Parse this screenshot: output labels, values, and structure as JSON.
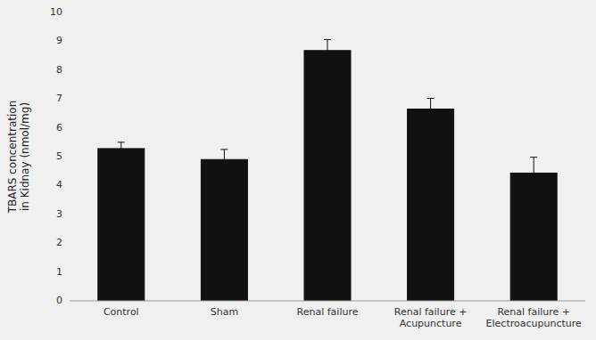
{
  "chart_data": {
    "type": "bar",
    "categories": [
      "Control",
      "Sham",
      "Renal failure",
      "Renal failure +\nAcupuncture",
      "Renal failure +\nElectroacupuncture"
    ],
    "values": [
      5.28,
      4.9,
      8.68,
      6.65,
      4.43
    ],
    "errors": [
      0.22,
      0.35,
      0.38,
      0.37,
      0.55
    ],
    "color": "#111111",
    "ylabel": "TBARS concentration\nin Kidnay (nmol/mg)",
    "ylim": [
      0,
      10
    ],
    "yticks": [
      0,
      1,
      2,
      3,
      4,
      5,
      6,
      7,
      8,
      9,
      10
    ],
    "grid": false
  }
}
